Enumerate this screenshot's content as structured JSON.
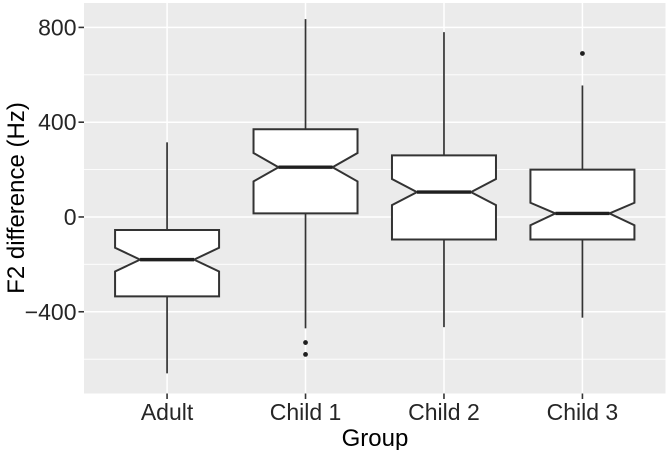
{
  "chart_data": {
    "type": "boxplot",
    "title": "",
    "xlabel": "Group",
    "ylabel": "F2 difference (Hz)",
    "categories": [
      "Adult",
      "Child 1",
      "Child 2",
      "Child 3"
    ],
    "notched": true,
    "grid": true,
    "ylim": [
      -745,
      903
    ],
    "y_major_ticks": [
      -400,
      0,
      400,
      800
    ],
    "y_major_labels": [
      "−400",
      "0",
      "400",
      "800"
    ],
    "y_minor_ticks": [
      -600,
      -200,
      200,
      600
    ],
    "series": [
      {
        "group": "Adult",
        "whisker_low": -660,
        "q1": -335,
        "median": -180,
        "q3": -55,
        "whisker_high": 315,
        "notch_low": -230,
        "notch_high": -130,
        "outliers": []
      },
      {
        "group": "Child 1",
        "whisker_low": -470,
        "q1": 15,
        "median": 210,
        "q3": 370,
        "whisker_high": 835,
        "notch_low": 150,
        "notch_high": 270,
        "outliers": [
          -530,
          -580
        ]
      },
      {
        "group": "Child 2",
        "whisker_low": -465,
        "q1": -95,
        "median": 105,
        "q3": 260,
        "whisker_high": 780,
        "notch_low": 50,
        "notch_high": 160,
        "outliers": []
      },
      {
        "group": "Child 3",
        "whisker_low": -425,
        "q1": -95,
        "median": 15,
        "q3": 200,
        "whisker_high": 555,
        "notch_low": -35,
        "notch_high": 60,
        "outliers": [
          690
        ]
      }
    ],
    "colors": {
      "panel_background": "#EBEBEB",
      "gridline": "#FFFFFF",
      "box_fill": "#FFFFFF",
      "box_stroke": "#333333",
      "median_stroke": "#1F1F1F",
      "outlier_fill": "#1F1F1F",
      "tick_mark": "#333333",
      "tick_text": "#262626",
      "title_text": "#000000"
    }
  }
}
